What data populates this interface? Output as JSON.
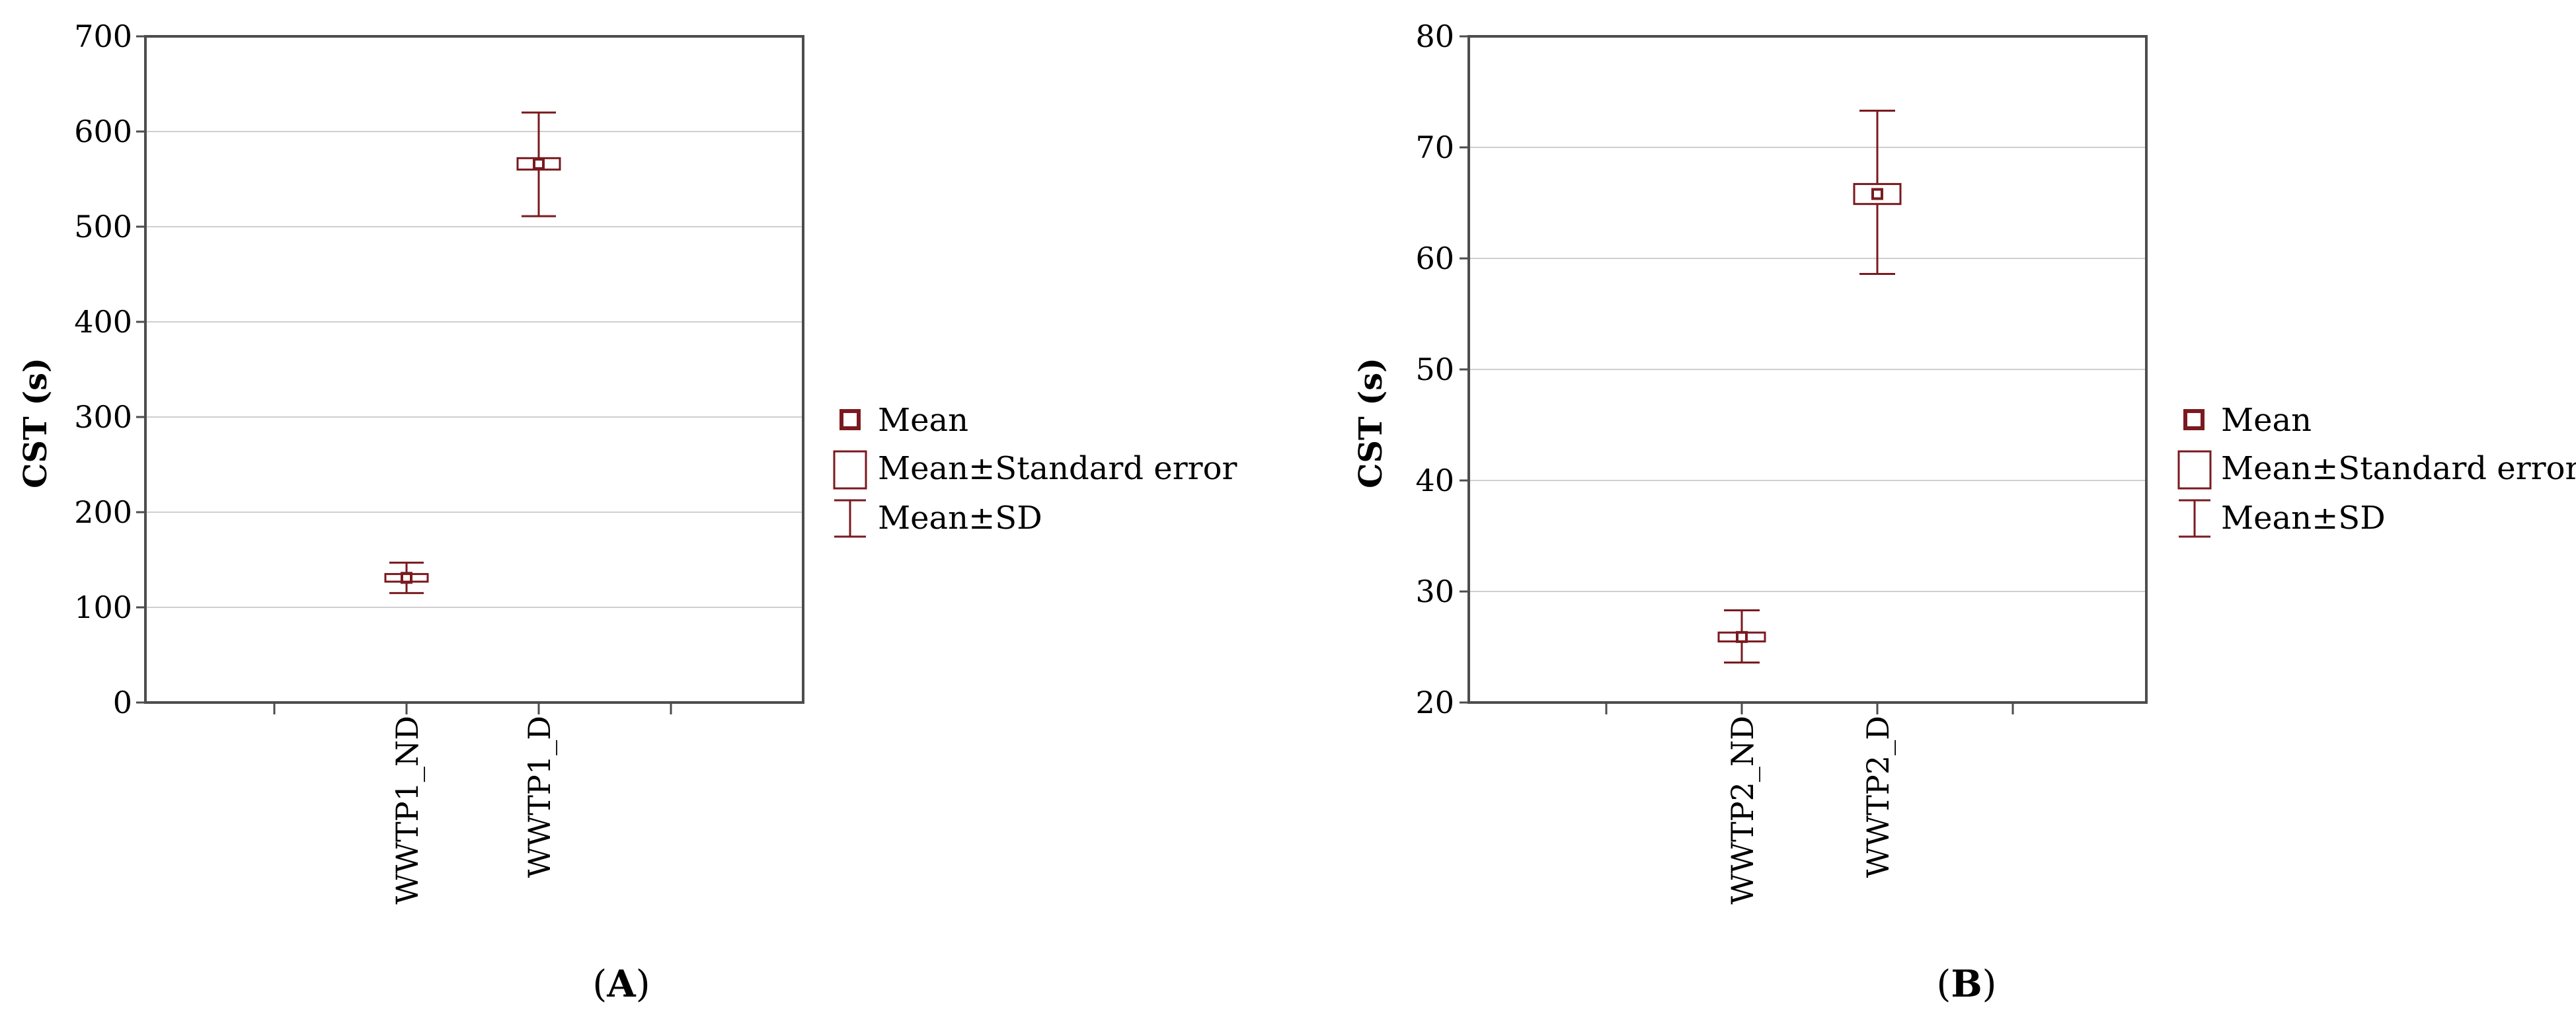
{
  "colors": {
    "mark": "#7a1a1f",
    "frame": "#4d4d4d",
    "grid": "#cfcfcf"
  },
  "legend": {
    "mean": "Mean",
    "se": "Mean±Standard error",
    "sd": "Mean±SD"
  },
  "chart_data": [
    {
      "type": "box",
      "panel_label": {
        "open": "(",
        "letter": "A",
        "close": ")"
      },
      "title": "",
      "ylabel": "CST (s)",
      "ylim": [
        0,
        700
      ],
      "yticks": [
        0,
        100,
        200,
        300,
        400,
        500,
        600,
        700
      ],
      "categories": [
        "WWTP1_ND",
        "WWTP1_D"
      ],
      "mean": [
        131,
        566
      ],
      "se_low": [
        127,
        560
      ],
      "se_high": [
        135,
        572
      ],
      "sd_low": [
        115,
        511
      ],
      "sd_high": [
        147,
        620
      ],
      "legend_position": "right",
      "grid": "horizontal"
    },
    {
      "type": "box",
      "panel_label": {
        "open": "(",
        "letter": "B",
        "close": ")"
      },
      "title": "",
      "ylabel": "CST (s)",
      "ylim": [
        20,
        80
      ],
      "yticks": [
        20,
        30,
        40,
        50,
        60,
        70,
        80
      ],
      "categories": [
        "WWTP2_ND",
        "WWTP2_D"
      ],
      "mean": [
        25.9,
        65.8
      ],
      "se_low": [
        25.5,
        64.9
      ],
      "se_high": [
        26.3,
        66.7
      ],
      "sd_low": [
        23.6,
        58.6
      ],
      "sd_high": [
        28.3,
        73.3
      ],
      "legend_position": "right",
      "grid": "horizontal"
    }
  ]
}
